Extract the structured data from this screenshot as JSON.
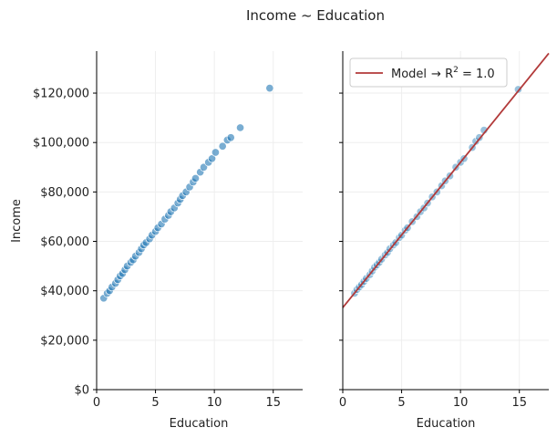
{
  "chart_data": {
    "title": "Income ~ Education",
    "panels": [
      {
        "type": "scatter",
        "xlabel": "Education",
        "ylabel": "Income",
        "xlim": [
          0,
          17.5
        ],
        "ylim": [
          0,
          137000
        ],
        "xticks": [
          0,
          5,
          10,
          15
        ],
        "yticks": [
          0,
          20000,
          40000,
          60000,
          80000,
          100000,
          120000
        ],
        "ytick_labels": [
          "$0",
          "$20,000",
          "$40,000",
          "$60,000",
          "$80,000",
          "$100,000",
          "$120,000"
        ],
        "grid": true,
        "points_color": "#1f77b4",
        "x": [
          0.6,
          0.9,
          1.1,
          1.3,
          1.6,
          1.8,
          2.0,
          2.2,
          2.4,
          2.6,
          2.9,
          3.1,
          3.3,
          3.6,
          3.8,
          4.0,
          4.2,
          4.5,
          4.7,
          5.0,
          5.2,
          5.5,
          5.8,
          6.1,
          6.3,
          6.6,
          6.9,
          7.1,
          7.3,
          7.6,
          7.9,
          8.2,
          8.4,
          8.8,
          9.1,
          9.5,
          9.8,
          10.1,
          10.7,
          11.1,
          11.4,
          12.2,
          14.7
        ],
        "y": [
          37000,
          39000,
          40000,
          41500,
          43000,
          44500,
          46000,
          47000,
          48500,
          50000,
          51500,
          52500,
          54000,
          55500,
          57000,
          58500,
          59500,
          61000,
          62500,
          64000,
          65500,
          67000,
          69000,
          70500,
          72000,
          73500,
          75500,
          77000,
          78500,
          80000,
          82000,
          84000,
          85500,
          88000,
          90000,
          92000,
          93500,
          96000,
          98500,
          101000,
          102000,
          106000,
          122000
        ]
      },
      {
        "type": "scatter",
        "xlabel": "Education",
        "xlim": [
          0,
          17.5
        ],
        "ylim": [
          0,
          137000
        ],
        "xticks": [
          0,
          5,
          10,
          15
        ],
        "grid": true,
        "points_color": "#1f77b4",
        "line_color": "#b23a3a",
        "legend": {
          "label": "Model",
          "formula_prefix": "→ R",
          "formula_sup": "2",
          "formula_suffix": " = 1.0",
          "position": "upper-left"
        },
        "model_line": {
          "intercept": 33200,
          "slope": 5880
        },
        "x": [
          1.0,
          1.2,
          1.4,
          1.6,
          1.8,
          2.0,
          2.3,
          2.5,
          2.7,
          2.9,
          3.1,
          3.3,
          3.6,
          3.8,
          4.0,
          4.3,
          4.5,
          4.8,
          5.0,
          5.3,
          5.5,
          5.9,
          6.3,
          6.6,
          6.9,
          7.2,
          7.6,
          8.0,
          8.4,
          8.7,
          9.1,
          9.6,
          10.0,
          10.3,
          11.0,
          11.3,
          11.6,
          12.0,
          14.9
        ],
        "y": [
          39000,
          40500,
          41500,
          42500,
          43800,
          45000,
          46500,
          48000,
          49500,
          50500,
          51500,
          52800,
          54500,
          55500,
          57000,
          58500,
          59500,
          61500,
          62500,
          64500,
          65500,
          68000,
          70000,
          72000,
          73500,
          75500,
          78000,
          80000,
          82500,
          84500,
          86500,
          90000,
          92000,
          93500,
          98000,
          100500,
          102000,
          105000,
          121500
        ]
      }
    ]
  }
}
